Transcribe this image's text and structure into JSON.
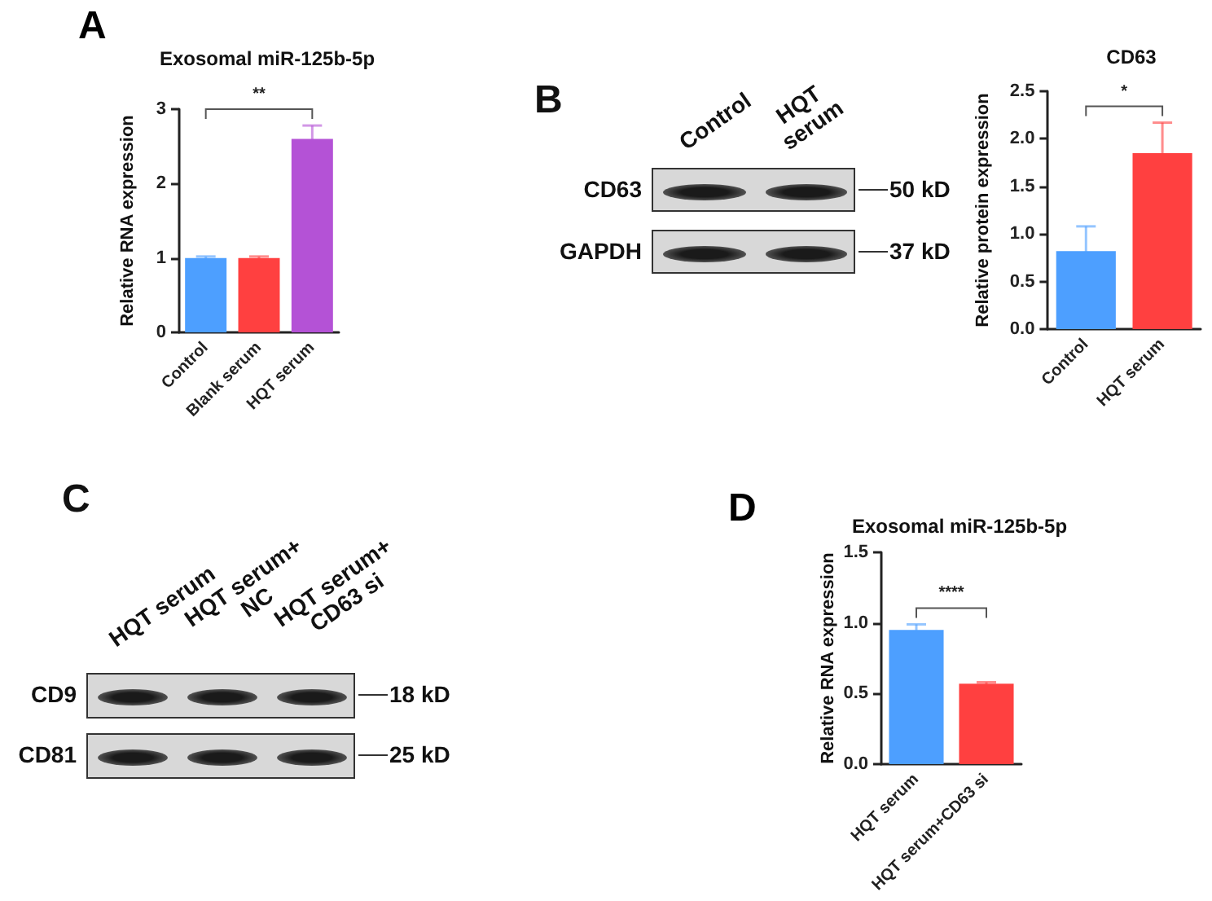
{
  "chart_data": [
    {
      "type": "bar",
      "title": "Exosomal miR-125b-5p",
      "ylabel": "Relative RNA expression",
      "annotations": [
        "A",
        "**"
      ],
      "categories": [
        "Control",
        "Blank serum",
        "HQT serum"
      ],
      "values": [
        1.0,
        1.0,
        2.6
      ],
      "errors": [
        0.02,
        0.02,
        0.18
      ],
      "colors": [
        "#4d9fff",
        "#ff4040",
        "#b452d6"
      ],
      "ylim": [
        0,
        3
      ],
      "yticks": [
        0,
        1,
        2,
        3
      ]
    },
    {
      "type": "other",
      "annotations": [
        "B"
      ],
      "categories": [
        "Control",
        "HQT\nserum"
      ],
      "y_categories": [
        "CD63",
        "GAPDH"
      ],
      "y2_categories": [
        "50 kD",
        "37 kD"
      ]
    },
    {
      "type": "bar",
      "title": "CD63",
      "ylabel": "Relative protein expression",
      "annotations": [
        "*"
      ],
      "categories": [
        "Control",
        "HQT serum"
      ],
      "values": [
        0.82,
        1.85
      ],
      "errors": [
        0.26,
        0.32
      ],
      "colors": [
        "#4d9fff",
        "#ff4040"
      ],
      "ylim": [
        0,
        2.5
      ],
      "yticks": [
        {
          "value": 0,
          "label": "0.0"
        },
        {
          "value": 0.5,
          "label": "0.5"
        },
        {
          "value": 1,
          "label": "1.0"
        },
        {
          "value": 1.5,
          "label": "1.5"
        },
        {
          "value": 2,
          "label": "2.0"
        },
        {
          "value": 2.5,
          "label": "2.5"
        }
      ]
    },
    {
      "type": "other",
      "annotations": [
        "C"
      ],
      "categories": [
        "HQT serum",
        "HQT serum+\nNC",
        "HQT serum+\nCD63 si"
      ],
      "y_categories": [
        "CD9",
        "CD81"
      ],
      "y2_categories": [
        "18 kD",
        "25 kD"
      ]
    },
    {
      "type": "bar",
      "title": "Exosomal miR-125b-5p",
      "ylabel": "Relative RNA expression",
      "annotations": [
        "D",
        "****"
      ],
      "categories": [
        "HQT serum",
        "HQT serum+CD63 si"
      ],
      "values": [
        0.95,
        0.57
      ],
      "errors": [
        0.04,
        0.01
      ],
      "colors": [
        "#4d9fff",
        "#ff4040"
      ],
      "ylim": [
        0,
        1.5
      ],
      "yticks": [
        {
          "value": 0,
          "label": "0.0"
        },
        {
          "value": 0.5,
          "label": "0.5"
        },
        {
          "value": 1,
          "label": "1.0"
        },
        {
          "value": 1.5,
          "label": "1.5"
        }
      ]
    }
  ]
}
